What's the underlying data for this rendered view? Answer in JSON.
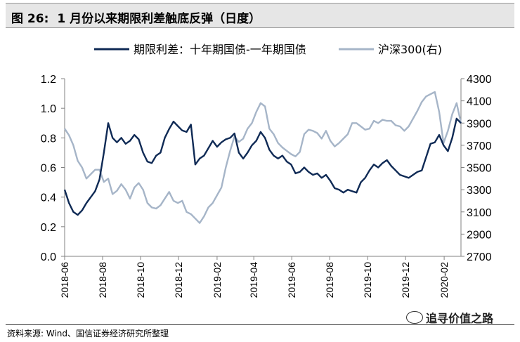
{
  "header": {
    "figure_label": "图 26:",
    "title": "1 月份以来期限利差触底反弹（日度）"
  },
  "footer": {
    "source": "资料来源: Wind、国信证券经济研究所整理",
    "watermark": "追寻价值之路"
  },
  "chart_data": {
    "type": "line",
    "x_ticks": [
      "2018-06",
      "2018-08",
      "2018-10",
      "2018-12",
      "2019-02",
      "2019-04",
      "2019-06",
      "2019-08",
      "2019-10",
      "2019-12",
      "2020-02"
    ],
    "y_left": {
      "ticks": [
        "0.0",
        "0.2",
        "0.4",
        "0.6",
        "0.8",
        "1.0",
        "1.2"
      ],
      "range": [
        0,
        1.2
      ]
    },
    "y_right": {
      "ticks": [
        "2700",
        "2900",
        "3100",
        "3300",
        "3500",
        "3700",
        "3900",
        "4100",
        "4300"
      ],
      "range": [
        2700,
        4300
      ]
    },
    "legend_position": "top",
    "grid": false,
    "series": [
      {
        "name": "期限利差：十年期国债-一年期国债",
        "axis": "left",
        "color": "#0f2a55",
        "points": [
          [
            "2018-06-01",
            0.45
          ],
          [
            "2018-06-08",
            0.36
          ],
          [
            "2018-06-15",
            0.3
          ],
          [
            "2018-06-22",
            0.28
          ],
          [
            "2018-06-29",
            0.31
          ],
          [
            "2018-07-06",
            0.36
          ],
          [
            "2018-07-13",
            0.4
          ],
          [
            "2018-07-20",
            0.44
          ],
          [
            "2018-07-27",
            0.52
          ],
          [
            "2018-08-03",
            0.7
          ],
          [
            "2018-08-10",
            0.9
          ],
          [
            "2018-08-17",
            0.8
          ],
          [
            "2018-08-24",
            0.77
          ],
          [
            "2018-08-31",
            0.8
          ],
          [
            "2018-09-07",
            0.76
          ],
          [
            "2018-09-14",
            0.78
          ],
          [
            "2018-09-21",
            0.82
          ],
          [
            "2018-09-28",
            0.79
          ],
          [
            "2018-10-05",
            0.7
          ],
          [
            "2018-10-12",
            0.64
          ],
          [
            "2018-10-19",
            0.63
          ],
          [
            "2018-10-26",
            0.68
          ],
          [
            "2018-11-02",
            0.7
          ],
          [
            "2018-11-09",
            0.8
          ],
          [
            "2018-11-16",
            0.86
          ],
          [
            "2018-11-23",
            0.91
          ],
          [
            "2018-11-30",
            0.88
          ],
          [
            "2018-12-07",
            0.85
          ],
          [
            "2018-12-14",
            0.84
          ],
          [
            "2018-12-21",
            0.89
          ],
          [
            "2018-12-28",
            0.62
          ],
          [
            "2019-01-04",
            0.66
          ],
          [
            "2019-01-11",
            0.68
          ],
          [
            "2019-01-18",
            0.73
          ],
          [
            "2019-01-25",
            0.78
          ],
          [
            "2019-02-01",
            0.74
          ],
          [
            "2019-02-08",
            0.77
          ],
          [
            "2019-02-15",
            0.79
          ],
          [
            "2019-02-22",
            0.8
          ],
          [
            "2019-03-01",
            0.83
          ],
          [
            "2019-03-08",
            0.7
          ],
          [
            "2019-03-15",
            0.66
          ],
          [
            "2019-03-22",
            0.7
          ],
          [
            "2019-03-29",
            0.75
          ],
          [
            "2019-04-05",
            0.78
          ],
          [
            "2019-04-12",
            0.84
          ],
          [
            "2019-04-19",
            0.8
          ],
          [
            "2019-04-26",
            0.72
          ],
          [
            "2019-05-03",
            0.68
          ],
          [
            "2019-05-10",
            0.66
          ],
          [
            "2019-05-17",
            0.68
          ],
          [
            "2019-05-24",
            0.64
          ],
          [
            "2019-05-31",
            0.62
          ],
          [
            "2019-06-07",
            0.56
          ],
          [
            "2019-06-14",
            0.57
          ],
          [
            "2019-06-21",
            0.6
          ],
          [
            "2019-06-28",
            0.57
          ],
          [
            "2019-07-05",
            0.55
          ],
          [
            "2019-07-12",
            0.56
          ],
          [
            "2019-07-19",
            0.53
          ],
          [
            "2019-07-26",
            0.55
          ],
          [
            "2019-08-02",
            0.51
          ],
          [
            "2019-08-09",
            0.46
          ],
          [
            "2019-08-16",
            0.45
          ],
          [
            "2019-08-23",
            0.43
          ],
          [
            "2019-08-30",
            0.45
          ],
          [
            "2019-09-06",
            0.44
          ],
          [
            "2019-09-13",
            0.43
          ],
          [
            "2019-09-20",
            0.5
          ],
          [
            "2019-09-27",
            0.53
          ],
          [
            "2019-10-04",
            0.58
          ],
          [
            "2019-10-11",
            0.62
          ],
          [
            "2019-10-18",
            0.6
          ],
          [
            "2019-10-25",
            0.63
          ],
          [
            "2019-11-01",
            0.65
          ],
          [
            "2019-11-08",
            0.61
          ],
          [
            "2019-11-15",
            0.58
          ],
          [
            "2019-11-22",
            0.55
          ],
          [
            "2019-11-29",
            0.54
          ],
          [
            "2019-12-06",
            0.53
          ],
          [
            "2019-12-13",
            0.55
          ],
          [
            "2019-12-20",
            0.57
          ],
          [
            "2019-12-27",
            0.58
          ],
          [
            "2020-01-03",
            0.67
          ],
          [
            "2020-01-10",
            0.76
          ],
          [
            "2020-01-17",
            0.77
          ],
          [
            "2020-01-24",
            0.82
          ],
          [
            "2020-01-31",
            0.75
          ],
          [
            "2020-02-07",
            0.71
          ],
          [
            "2020-02-14",
            0.8
          ],
          [
            "2020-02-21",
            0.93
          ],
          [
            "2020-02-28",
            0.9
          ]
        ]
      },
      {
        "name": "沪深300(右)",
        "axis": "right",
        "color": "#a6b5c8",
        "points": [
          [
            "2018-06-01",
            3850
          ],
          [
            "2018-06-08",
            3790
          ],
          [
            "2018-06-15",
            3700
          ],
          [
            "2018-06-22",
            3560
          ],
          [
            "2018-06-29",
            3500
          ],
          [
            "2018-07-06",
            3400
          ],
          [
            "2018-07-13",
            3440
          ],
          [
            "2018-07-20",
            3480
          ],
          [
            "2018-07-27",
            3480
          ],
          [
            "2018-08-03",
            3370
          ],
          [
            "2018-08-10",
            3400
          ],
          [
            "2018-08-17",
            3260
          ],
          [
            "2018-08-24",
            3290
          ],
          [
            "2018-08-31",
            3350
          ],
          [
            "2018-09-07",
            3300
          ],
          [
            "2018-09-14",
            3220
          ],
          [
            "2018-09-21",
            3320
          ],
          [
            "2018-09-28",
            3360
          ],
          [
            "2018-10-05",
            3300
          ],
          [
            "2018-10-12",
            3180
          ],
          [
            "2018-10-19",
            3140
          ],
          [
            "2018-10-26",
            3130
          ],
          [
            "2018-11-02",
            3160
          ],
          [
            "2018-11-09",
            3220
          ],
          [
            "2018-11-16",
            3280
          ],
          [
            "2018-11-23",
            3200
          ],
          [
            "2018-11-30",
            3180
          ],
          [
            "2018-12-07",
            3200
          ],
          [
            "2018-12-14",
            3100
          ],
          [
            "2018-12-21",
            3080
          ],
          [
            "2018-12-28",
            3040
          ],
          [
            "2019-01-04",
            3000
          ],
          [
            "2019-01-11",
            3060
          ],
          [
            "2019-01-18",
            3140
          ],
          [
            "2019-01-25",
            3180
          ],
          [
            "2019-02-01",
            3250
          ],
          [
            "2019-02-08",
            3320
          ],
          [
            "2019-02-15",
            3500
          ],
          [
            "2019-02-22",
            3650
          ],
          [
            "2019-03-01",
            3780
          ],
          [
            "2019-03-08",
            3730
          ],
          [
            "2019-03-15",
            3760
          ],
          [
            "2019-03-22",
            3850
          ],
          [
            "2019-03-29",
            3900
          ],
          [
            "2019-04-05",
            4000
          ],
          [
            "2019-04-12",
            4080
          ],
          [
            "2019-04-19",
            4050
          ],
          [
            "2019-04-26",
            3850
          ],
          [
            "2019-05-03",
            3800
          ],
          [
            "2019-05-10",
            3720
          ],
          [
            "2019-05-17",
            3680
          ],
          [
            "2019-05-24",
            3650
          ],
          [
            "2019-05-31",
            3620
          ],
          [
            "2019-06-07",
            3600
          ],
          [
            "2019-06-14",
            3640
          ],
          [
            "2019-06-21",
            3800
          ],
          [
            "2019-06-28",
            3840
          ],
          [
            "2019-07-05",
            3830
          ],
          [
            "2019-07-12",
            3810
          ],
          [
            "2019-07-19",
            3760
          ],
          [
            "2019-07-26",
            3830
          ],
          [
            "2019-08-02",
            3740
          ],
          [
            "2019-08-09",
            3690
          ],
          [
            "2019-08-16",
            3720
          ],
          [
            "2019-08-23",
            3760
          ],
          [
            "2019-08-30",
            3800
          ],
          [
            "2019-09-06",
            3900
          ],
          [
            "2019-09-13",
            3900
          ],
          [
            "2019-09-20",
            3870
          ],
          [
            "2019-09-27",
            3840
          ],
          [
            "2019-10-04",
            3850
          ],
          [
            "2019-10-11",
            3920
          ],
          [
            "2019-10-18",
            3900
          ],
          [
            "2019-10-25",
            3930
          ],
          [
            "2019-11-01",
            3920
          ],
          [
            "2019-11-08",
            3920
          ],
          [
            "2019-11-15",
            3880
          ],
          [
            "2019-11-22",
            3870
          ],
          [
            "2019-11-29",
            3830
          ],
          [
            "2019-12-06",
            3870
          ],
          [
            "2019-12-13",
            3940
          ],
          [
            "2019-12-20",
            4010
          ],
          [
            "2019-12-27",
            4090
          ],
          [
            "2020-01-03",
            4140
          ],
          [
            "2020-01-10",
            4160
          ],
          [
            "2020-01-17",
            4180
          ],
          [
            "2020-01-24",
            4000
          ],
          [
            "2020-01-31",
            3720
          ],
          [
            "2020-02-07",
            3830
          ],
          [
            "2020-02-14",
            3980
          ],
          [
            "2020-02-21",
            4080
          ],
          [
            "2020-02-28",
            3900
          ]
        ]
      }
    ]
  }
}
